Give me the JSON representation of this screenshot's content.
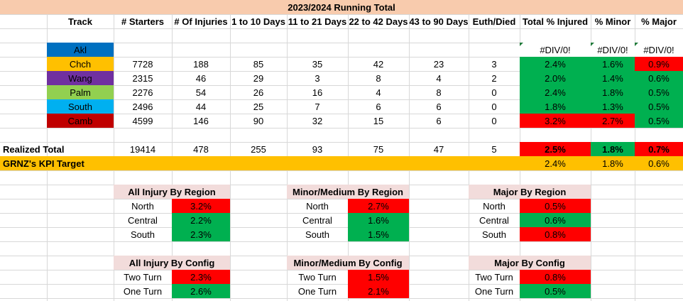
{
  "colors": {
    "title_bg": "#f8cbad",
    "green": "#00b050",
    "red": "#ff0000",
    "gold": "#ffc000",
    "section_header_bg": "#f2dcdb",
    "track_akl": "#0070c0",
    "track_chch": "#ffc000",
    "track_wang": "#7030a0",
    "track_palm": "#92d050",
    "track_south": "#00b0f0",
    "track_camb": "#c00000"
  },
  "title": "2023/2024 Running Total",
  "headers": [
    "Track",
    "# Starters",
    "# Of Injuries",
    "1 to 10 Days",
    "11 to 21 Days",
    "22 to 42 Days",
    "43 to 90 Days",
    "Euth/Died",
    "Total % Injured",
    "% Minor",
    "% Major"
  ],
  "tracks": [
    {
      "name": "Akl",
      "color": "#0070c0",
      "starters": "",
      "injuries": "",
      "d1_10": "",
      "d11_21": "",
      "d22_42": "",
      "d43_90": "",
      "euth": "",
      "total_pct": "#DIV/0!",
      "minor_pct": "#DIV/0!",
      "major_pct": "#DIV/0!",
      "total_bg": "#ffffff",
      "minor_bg": "#ffffff",
      "major_bg": "#ffffff"
    },
    {
      "name": "Chch",
      "color": "#ffc000",
      "starters": "7728",
      "injuries": "188",
      "d1_10": "85",
      "d11_21": "35",
      "d22_42": "42",
      "d43_90": "23",
      "euth": "3",
      "total_pct": "2.4%",
      "minor_pct": "1.6%",
      "major_pct": "0.9%",
      "total_bg": "#00b050",
      "minor_bg": "#00b050",
      "major_bg": "#ff0000"
    },
    {
      "name": "Wang",
      "color": "#7030a0",
      "starters": "2315",
      "injuries": "46",
      "d1_10": "29",
      "d11_21": "3",
      "d22_42": "8",
      "d43_90": "4",
      "euth": "2",
      "total_pct": "2.0%",
      "minor_pct": "1.4%",
      "major_pct": "0.6%",
      "total_bg": "#00b050",
      "minor_bg": "#00b050",
      "major_bg": "#00b050"
    },
    {
      "name": "Palm",
      "color": "#92d050",
      "starters": "2276",
      "injuries": "54",
      "d1_10": "26",
      "d11_21": "16",
      "d22_42": "4",
      "d43_90": "8",
      "euth": "0",
      "total_pct": "2.4%",
      "minor_pct": "1.8%",
      "major_pct": "0.5%",
      "total_bg": "#00b050",
      "minor_bg": "#00b050",
      "major_bg": "#00b050"
    },
    {
      "name": "South",
      "color": "#00b0f0",
      "starters": "2496",
      "injuries": "44",
      "d1_10": "25",
      "d11_21": "7",
      "d22_42": "6",
      "d43_90": "6",
      "euth": "0",
      "total_pct": "1.8%",
      "minor_pct": "1.3%",
      "major_pct": "0.5%",
      "total_bg": "#00b050",
      "minor_bg": "#00b050",
      "major_bg": "#00b050"
    },
    {
      "name": "Camb",
      "color": "#c00000",
      "starters": "4599",
      "injuries": "146",
      "d1_10": "90",
      "d11_21": "32",
      "d22_42": "15",
      "d43_90": "6",
      "euth": "0",
      "total_pct": "3.2%",
      "minor_pct": "2.7%",
      "major_pct": "0.5%",
      "total_bg": "#ff0000",
      "minor_bg": "#ff0000",
      "major_bg": "#00b050"
    }
  ],
  "realized": {
    "label": "Realized Total",
    "starters": "19414",
    "injuries": "478",
    "d1_10": "255",
    "d11_21": "93",
    "d22_42": "75",
    "d43_90": "47",
    "euth": "5",
    "total_pct": "2.5%",
    "minor_pct": "1.8%",
    "major_pct": "0.7%",
    "total_bg": "#ff0000",
    "minor_bg": "#00b050",
    "major_bg": "#ff0000"
  },
  "kpi": {
    "label": "GRNZ's KPI Target",
    "total_pct": "2.4%",
    "minor_pct": "1.8%",
    "major_pct": "0.6%"
  },
  "summary_tables": [
    {
      "title": "All Injury By Region",
      "rows": [
        {
          "label": "North",
          "value": "3.2%",
          "bg": "#ff0000"
        },
        {
          "label": "Central",
          "value": "2.2%",
          "bg": "#00b050"
        },
        {
          "label": "South",
          "value": "2.3%",
          "bg": "#00b050"
        }
      ]
    },
    {
      "title": "Minor/Medium By Region",
      "rows": [
        {
          "label": "North",
          "value": "2.7%",
          "bg": "#ff0000"
        },
        {
          "label": "Central",
          "value": "1.6%",
          "bg": "#00b050"
        },
        {
          "label": "South",
          "value": "1.5%",
          "bg": "#00b050"
        }
      ]
    },
    {
      "title": "Major By Region",
      "rows": [
        {
          "label": "North",
          "value": "0.5%",
          "bg": "#ff0000"
        },
        {
          "label": "Central",
          "value": "0.6%",
          "bg": "#00b050"
        },
        {
          "label": "South",
          "value": "0.8%",
          "bg": "#ff0000"
        }
      ]
    },
    {
      "title": "All Injury By Config",
      "rows": [
        {
          "label": "Two Turn",
          "value": "2.3%",
          "bg": "#ff0000"
        },
        {
          "label": "One Turn",
          "value": "2.6%",
          "bg": "#00b050"
        }
      ]
    },
    {
      "title": "Minor/Medium By Config",
      "rows": [
        {
          "label": "Two Turn",
          "value": "1.5%",
          "bg": "#ff0000"
        },
        {
          "label": "One Turn",
          "value": "2.1%",
          "bg": "#ff0000"
        }
      ]
    },
    {
      "title": "Major By Config",
      "rows": [
        {
          "label": "Two Turn",
          "value": "0.8%",
          "bg": "#ff0000"
        },
        {
          "label": "One Turn",
          "value": "0.5%",
          "bg": "#00b050"
        }
      ]
    }
  ]
}
